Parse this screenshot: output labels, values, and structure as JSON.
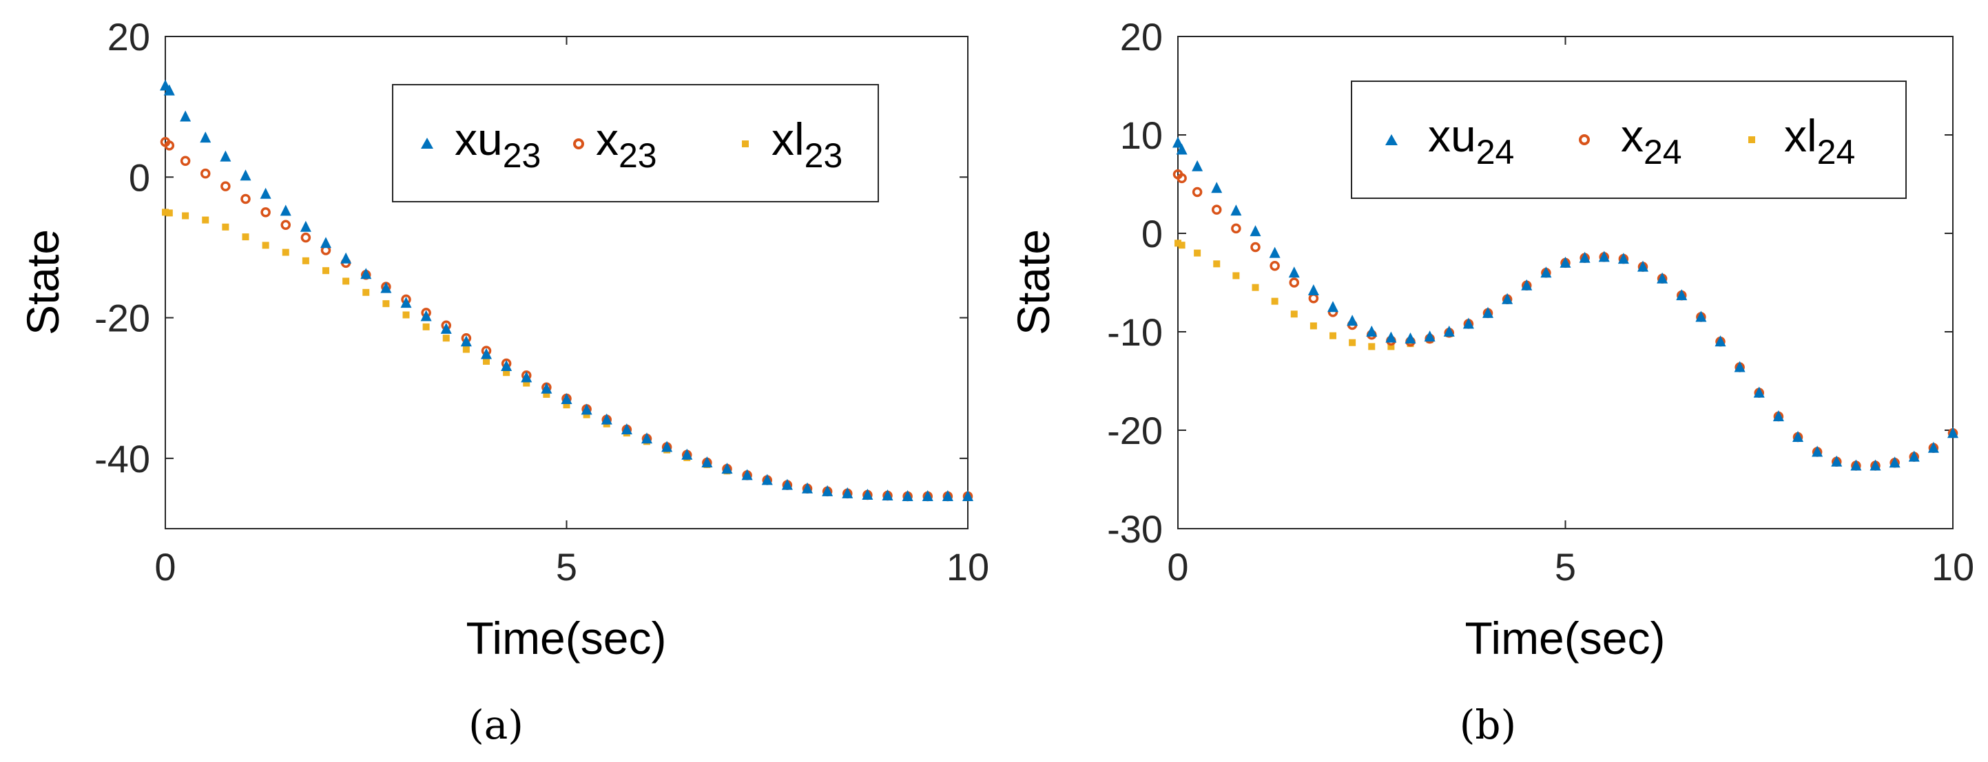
{
  "chart_data": [
    {
      "type": "scatter",
      "panel": "(a)",
      "xlabel": "Time(sec)",
      "ylabel": "State",
      "xlim": [
        0,
        10
      ],
      "ylim": [
        -50,
        20
      ],
      "xticks": [
        0,
        5,
        10
      ],
      "yticks": [
        20,
        0,
        -20,
        -40
      ],
      "legend_position": "top-right",
      "legend": [
        {
          "base": "xu",
          "sub": "23"
        },
        {
          "base": "x",
          "sub": "23"
        },
        {
          "base": "xl",
          "sub": "23"
        }
      ],
      "x": [
        0,
        0.05,
        0.25,
        0.5,
        0.75,
        1,
        1.25,
        1.5,
        1.75,
        2,
        2.25,
        2.5,
        2.75,
        3,
        3.25,
        3.5,
        3.75,
        4,
        4.25,
        4.5,
        4.75,
        5,
        5.25,
        5.5,
        5.75,
        6,
        6.25,
        6.5,
        6.75,
        7,
        7.25,
        7.5,
        7.75,
        8,
        8.25,
        8.5,
        8.75,
        9,
        9.25,
        9.5,
        9.75,
        10
      ],
      "series": [
        {
          "name": "xu",
          "color": "#0072BD",
          "marker": "triangle",
          "values": [
            13,
            12.3,
            8.6,
            5.6,
            2.9,
            0.2,
            -2.4,
            -4.8,
            -7.1,
            -9.4,
            -11.6,
            -13.8,
            -15.8,
            -17.9,
            -19.8,
            -21.6,
            -23.4,
            -25.2,
            -26.9,
            -28.5,
            -30.1,
            -31.6,
            -33.1,
            -34.5,
            -35.9,
            -37.2,
            -38.4,
            -39.5,
            -40.6,
            -41.5,
            -42.4,
            -43.1,
            -43.8,
            -44.3,
            -44.7,
            -45.0,
            -45.2,
            -45.3,
            -45.4,
            -45.4,
            -45.4,
            -45.4
          ]
        },
        {
          "name": "x",
          "color": "#D95319",
          "marker": "circle",
          "values": [
            5,
            4.5,
            2.3,
            0.5,
            -1.3,
            -3.1,
            -5.0,
            -6.8,
            -8.6,
            -10.4,
            -12.2,
            -13.9,
            -15.6,
            -17.4,
            -19.3,
            -21.1,
            -22.9,
            -24.7,
            -26.5,
            -28.2,
            -29.9,
            -31.5,
            -33.0,
            -34.5,
            -35.9,
            -37.2,
            -38.4,
            -39.5,
            -40.6,
            -41.5,
            -42.4,
            -43.1,
            -43.8,
            -44.3,
            -44.7,
            -45.0,
            -45.2,
            -45.3,
            -45.4,
            -45.4,
            -45.4,
            -45.4
          ]
        },
        {
          "name": "xl",
          "color": "#EDB120",
          "marker": "square",
          "values": [
            -5,
            -5.1,
            -5.5,
            -6.1,
            -7.1,
            -8.5,
            -9.7,
            -10.7,
            -11.9,
            -13.3,
            -14.8,
            -16.4,
            -18.0,
            -19.6,
            -21.3,
            -22.9,
            -24.5,
            -26.2,
            -27.8,
            -29.3,
            -30.9,
            -32.4,
            -33.8,
            -35.1,
            -36.4,
            -37.6,
            -38.8,
            -39.9,
            -40.9,
            -41.8,
            -42.5,
            -43.2,
            -43.8,
            -44.3,
            -44.7,
            -45.0,
            -45.2,
            -45.3,
            -45.4,
            -45.4,
            -45.4,
            -45.4
          ]
        }
      ]
    },
    {
      "type": "scatter",
      "panel": "(b)",
      "xlabel": "Time(sec)",
      "ylabel": "State",
      "xlim": [
        0,
        10
      ],
      "ylim": [
        -30,
        20
      ],
      "xticks": [
        0,
        5,
        10
      ],
      "yticks": [
        20,
        10,
        0,
        -10,
        -20,
        -30
      ],
      "legend_position": "top-right",
      "legend": [
        {
          "base": "xu",
          "sub": "24"
        },
        {
          "base": "x",
          "sub": "24"
        },
        {
          "base": "xl",
          "sub": "24"
        }
      ],
      "x": [
        0,
        0.05,
        0.25,
        0.5,
        0.75,
        1,
        1.25,
        1.5,
        1.75,
        2,
        2.25,
        2.5,
        2.75,
        3,
        3.25,
        3.5,
        3.75,
        4,
        4.25,
        4.5,
        4.75,
        5,
        5.25,
        5.5,
        5.75,
        6,
        6.25,
        6.5,
        6.75,
        7,
        7.25,
        7.5,
        7.75,
        8,
        8.25,
        8.5,
        8.75,
        9,
        9.25,
        9.5,
        9.75,
        10
      ],
      "series": [
        {
          "name": "xu",
          "color": "#0072BD",
          "marker": "triangle",
          "values": [
            9.2,
            8.5,
            6.8,
            4.6,
            2.3,
            0.2,
            -2.0,
            -4.0,
            -5.8,
            -7.5,
            -8.9,
            -10.0,
            -10.6,
            -10.7,
            -10.5,
            -10.0,
            -9.2,
            -8.1,
            -6.7,
            -5.3,
            -4.0,
            -3.0,
            -2.5,
            -2.4,
            -2.6,
            -3.4,
            -4.6,
            -6.3,
            -8.5,
            -11.0,
            -13.6,
            -16.2,
            -18.6,
            -20.7,
            -22.2,
            -23.2,
            -23.6,
            -23.6,
            -23.3,
            -22.7,
            -21.8,
            -20.3
          ]
        },
        {
          "name": "x",
          "color": "#D95319",
          "marker": "circle",
          "values": [
            6,
            5.6,
            4.2,
            2.4,
            0.5,
            -1.4,
            -3.3,
            -5.0,
            -6.6,
            -8.0,
            -9.3,
            -10.3,
            -10.9,
            -11.0,
            -10.7,
            -10.1,
            -9.2,
            -8.1,
            -6.7,
            -5.3,
            -4.0,
            -3.0,
            -2.5,
            -2.4,
            -2.6,
            -3.4,
            -4.6,
            -6.3,
            -8.5,
            -11.0,
            -13.6,
            -16.2,
            -18.6,
            -20.7,
            -22.2,
            -23.2,
            -23.6,
            -23.6,
            -23.3,
            -22.7,
            -21.8,
            -20.3
          ]
        },
        {
          "name": "xl",
          "color": "#EDB120",
          "marker": "square",
          "values": [
            -1,
            -1.2,
            -2.0,
            -3.1,
            -4.3,
            -5.5,
            -6.9,
            -8.2,
            -9.4,
            -10.4,
            -11.1,
            -11.5,
            -11.5,
            -11.2,
            -10.8,
            -10.2,
            -9.3,
            -8.1,
            -6.7,
            -5.3,
            -4.0,
            -3.0,
            -2.5,
            -2.4,
            -2.6,
            -3.4,
            -4.6,
            -6.3,
            -8.5,
            -11.0,
            -13.6,
            -16.2,
            -18.6,
            -20.7,
            -22.2,
            -23.2,
            -23.6,
            -23.6,
            -23.3,
            -22.7,
            -21.8,
            -20.3
          ]
        }
      ]
    }
  ]
}
